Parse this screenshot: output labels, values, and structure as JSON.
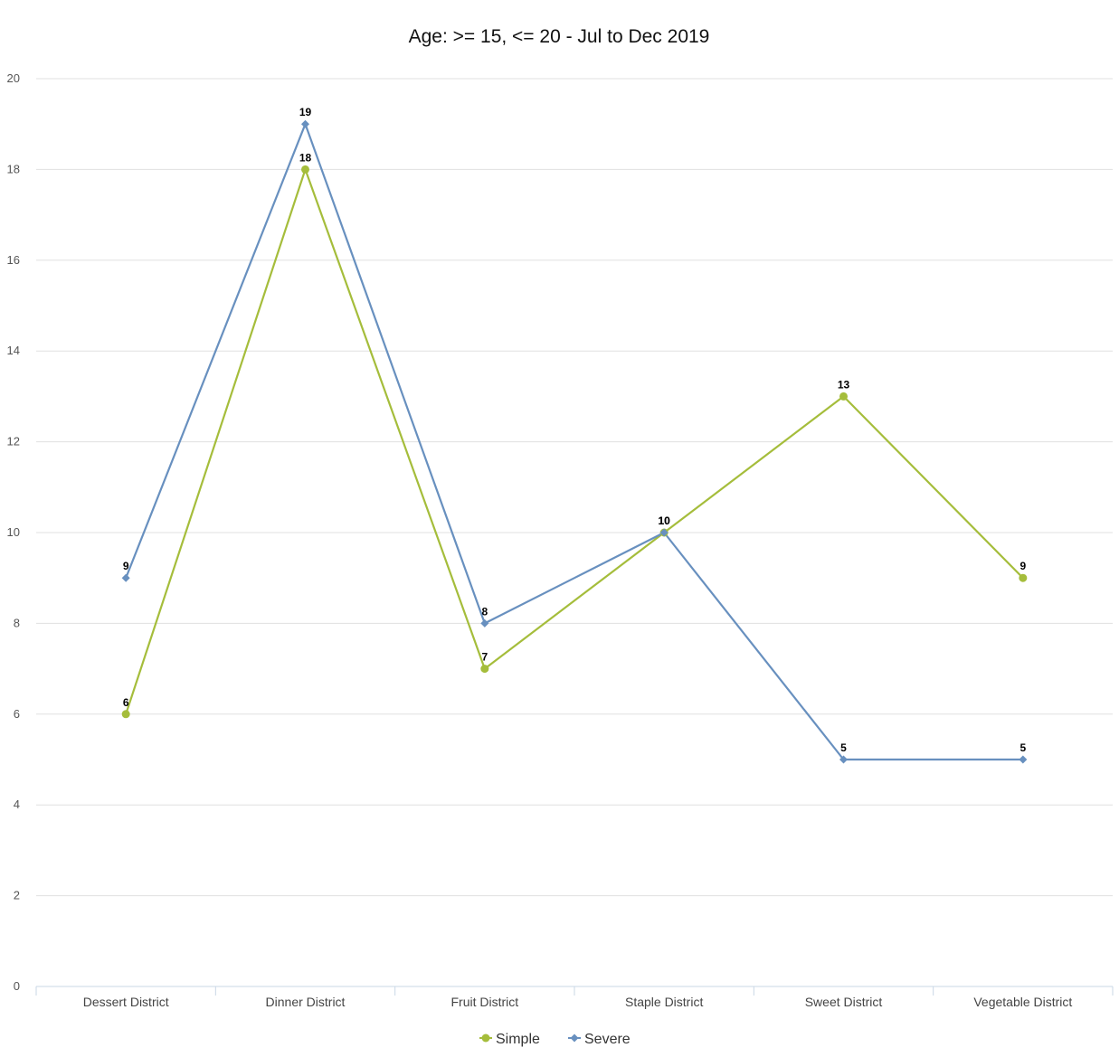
{
  "chart_data": {
    "type": "line",
    "title": "Age: >= 15, <= 20 - Jul to Dec 2019",
    "categories": [
      "Dessert District",
      "Dinner District",
      "Fruit District",
      "Staple District",
      "Sweet District",
      "Vegetable District"
    ],
    "ylim": [
      0,
      20
    ],
    "yticks": [
      0,
      2,
      4,
      6,
      8,
      10,
      12,
      14,
      16,
      18,
      20
    ],
    "grid": true,
    "legend_position": "bottom-center",
    "series": [
      {
        "name": "Simple",
        "color": "#a5bd3b",
        "marker": "circle",
        "values": [
          6,
          18,
          7,
          10,
          13,
          9
        ]
      },
      {
        "name": "Severe",
        "color": "#6890bf",
        "marker": "diamond",
        "values": [
          9,
          19,
          8,
          10,
          5,
          5
        ]
      }
    ]
  }
}
